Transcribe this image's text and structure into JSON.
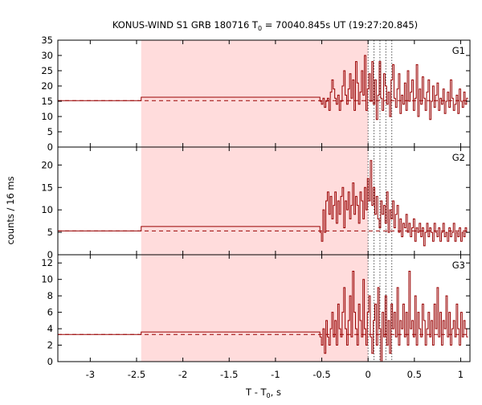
{
  "chart_data": {
    "type": "line",
    "title_main": "KONUS-WIND S1 GRB 180716 T",
    "title_sub": "0",
    "title_rest": " = 70040.845s UT (19:27:20.845)",
    "ylabel": "counts / 16 ms",
    "xlabel_main": "T - T",
    "xlabel_sub": "0",
    "xlabel_rest": ", s",
    "xlim": [
      -3.35,
      1.1
    ],
    "x_ticks": [
      -3,
      -2.5,
      -2,
      -1.5,
      -1,
      -0.5,
      0,
      0.5,
      1
    ],
    "x_tick_labels": [
      "-3",
      "-2.5",
      "-2",
      "-1.5",
      "-1",
      "-0.5",
      "0",
      "0.5",
      "1"
    ],
    "shaded_interval": [
      -2.45,
      0
    ],
    "vertical_markers": [
      0.0,
      0.064,
      0.128,
      0.192,
      0.256
    ],
    "colors": {
      "line": "#990000",
      "shade": "#ffdcdc",
      "axis": "#000000",
      "marker": "#555555"
    },
    "panels": [
      {
        "name": "G1",
        "ylim": [
          0,
          35
        ],
        "y_ticks": [
          0,
          5,
          10,
          15,
          20,
          25,
          30,
          35
        ],
        "y_tick_labels": [
          "0",
          "5",
          "10",
          "15",
          "20",
          "25",
          "30",
          "35"
        ],
        "background_level": 15.2,
        "steps": [
          {
            "x0": -3.35,
            "x1": -2.45,
            "y": 15.2
          },
          {
            "x0": -2.45,
            "x1": -0.52,
            "y": 16.3
          }
        ],
        "fine_start": -0.52,
        "bin_width": 0.016,
        "fine_values": [
          15,
          14,
          16,
          13,
          15,
          16,
          12,
          18,
          22,
          19,
          16,
          14,
          17,
          12,
          15,
          20,
          25,
          17,
          14,
          19,
          24,
          16,
          22,
          12,
          28,
          21,
          14,
          18,
          25,
          17,
          30,
          12,
          19,
          24,
          15,
          28,
          14,
          22,
          9,
          17,
          28,
          16,
          12,
          24,
          20,
          14,
          18,
          10,
          22,
          27,
          16,
          13,
          19,
          24,
          11,
          17,
          14,
          21,
          12,
          25,
          15,
          18,
          22,
          12,
          16,
          27,
          10,
          19,
          14,
          23,
          16,
          12,
          18,
          22,
          9,
          15,
          20,
          13,
          17,
          21,
          12,
          16,
          14,
          19,
          11,
          15,
          18,
          13,
          22,
          16,
          12,
          14,
          17,
          11,
          19,
          15,
          13,
          18,
          14,
          16
        ]
      },
      {
        "name": "G2",
        "ylim": [
          0,
          24
        ],
        "y_ticks": [
          0,
          5,
          10,
          15,
          20
        ],
        "y_tick_labels": [
          "0",
          "5",
          "10",
          "15",
          "20"
        ],
        "background_level": 5.3,
        "steps": [
          {
            "x0": -3.35,
            "x1": -2.45,
            "y": 5.3
          },
          {
            "x0": -2.45,
            "x1": -0.52,
            "y": 6.3
          }
        ],
        "fine_start": -0.52,
        "bin_width": 0.016,
        "fine_values": [
          5,
          3,
          10,
          5,
          12,
          14,
          9,
          13,
          8,
          11,
          14,
          7,
          12,
          9,
          13,
          15,
          6,
          12,
          10,
          14,
          8,
          11,
          16,
          9,
          13,
          11,
          7,
          14,
          12,
          8,
          15,
          10,
          17,
          12,
          21,
          11,
          15,
          9,
          13,
          8,
          6,
          12,
          9,
          11,
          7,
          14,
          5,
          10,
          8,
          12,
          6,
          9,
          11,
          5,
          8,
          4,
          7,
          6,
          9,
          5,
          7,
          4,
          6,
          8,
          3,
          6,
          5,
          7,
          4,
          6,
          2,
          5,
          7,
          4,
          6,
          5,
          3,
          7,
          5,
          4,
          6,
          3,
          5,
          7,
          4,
          5,
          3,
          6,
          4,
          5,
          7,
          3,
          5,
          4,
          6,
          3,
          5,
          4,
          6,
          5
        ]
      },
      {
        "name": "G3",
        "ylim": [
          0,
          13
        ],
        "y_ticks": [
          0,
          2,
          4,
          6,
          8,
          10,
          12
        ],
        "y_tick_labels": [
          "0",
          "2",
          "4",
          "6",
          "8",
          "10",
          "12"
        ],
        "background_level": 3.3,
        "steps": [
          {
            "x0": -3.35,
            "x1": -2.45,
            "y": 3.3
          },
          {
            "x0": -2.45,
            "x1": -0.52,
            "y": 3.6
          }
        ],
        "fine_start": -0.52,
        "bin_width": 0.016,
        "fine_values": [
          3,
          2,
          4,
          1,
          5,
          3,
          2,
          4,
          6,
          3,
          5,
          2,
          7,
          4,
          3,
          6,
          9,
          4,
          2,
          5,
          8,
          3,
          11,
          6,
          4,
          2,
          7,
          5,
          3,
          10,
          4,
          2,
          6,
          8,
          3,
          1,
          5,
          7,
          2,
          9,
          4,
          0,
          6,
          3,
          8,
          2,
          5,
          1,
          7,
          4,
          6,
          3,
          9,
          2,
          5,
          4,
          7,
          3,
          6,
          2,
          11,
          4,
          5,
          3,
          8,
          2,
          6,
          4,
          3,
          7,
          5,
          2,
          4,
          6,
          3,
          5,
          2,
          7,
          4,
          9,
          3,
          6,
          2,
          5,
          4,
          8,
          3,
          6,
          2,
          4,
          5,
          3,
          7,
          4,
          2,
          6,
          3,
          5,
          4,
          3
        ]
      }
    ]
  }
}
